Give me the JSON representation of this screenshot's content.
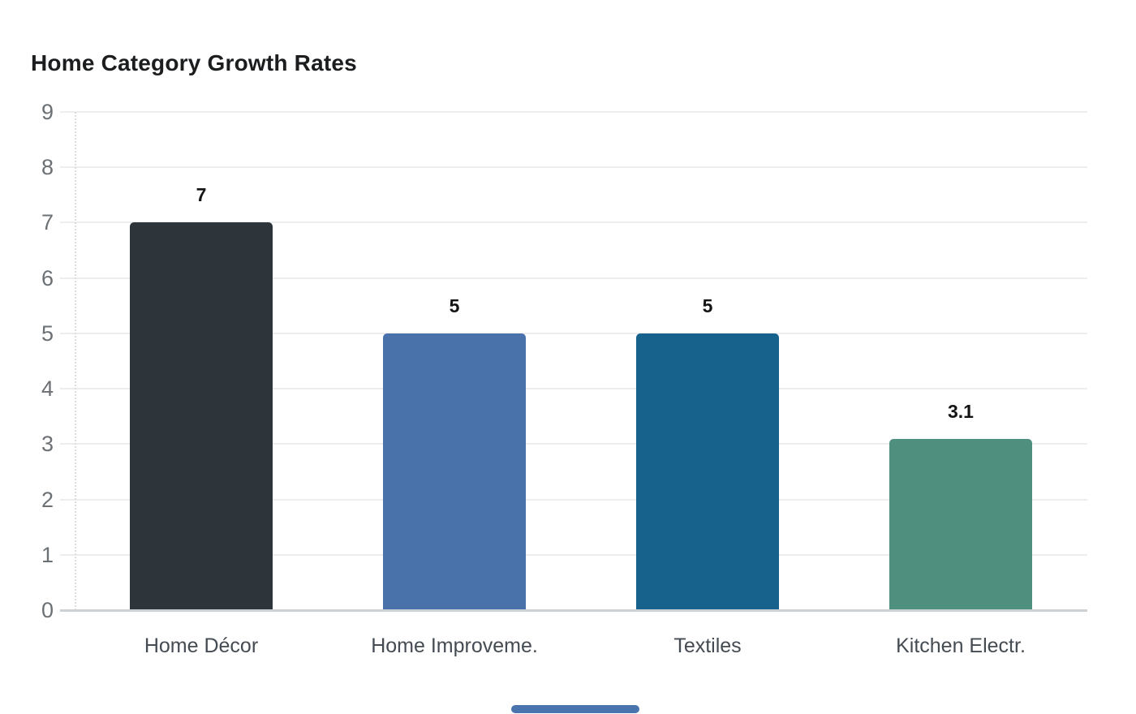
{
  "title": "Home Category Growth Rates",
  "chart_data": {
    "type": "bar",
    "title": "Home Category Growth Rates",
    "categories": [
      "Home Décor",
      "Home Improveme.",
      "Textiles",
      "Kitchen Electr."
    ],
    "values": [
      7,
      5,
      5,
      3.1
    ],
    "value_labels": [
      "7",
      "5",
      "5",
      "3.1"
    ],
    "bar_colors": [
      "#2d353a",
      "#4a72aa",
      "#17618d",
      "#4f8f7d"
    ],
    "xlabel": "",
    "ylabel": "",
    "ylim": [
      0,
      9
    ],
    "yticks": [
      0,
      1,
      2,
      3,
      4,
      5,
      6,
      7,
      8,
      9
    ],
    "grid": true,
    "legend": false,
    "colors": {
      "grid": "#ededee",
      "baseline": "#ccd1d5",
      "tick_text": "#6b7075",
      "category_text": "#454b52",
      "value_text": "#141414",
      "title_text": "#1b1d1f",
      "background": "#ffffff"
    }
  },
  "scrollbar": {
    "color": "#4a74ae"
  }
}
